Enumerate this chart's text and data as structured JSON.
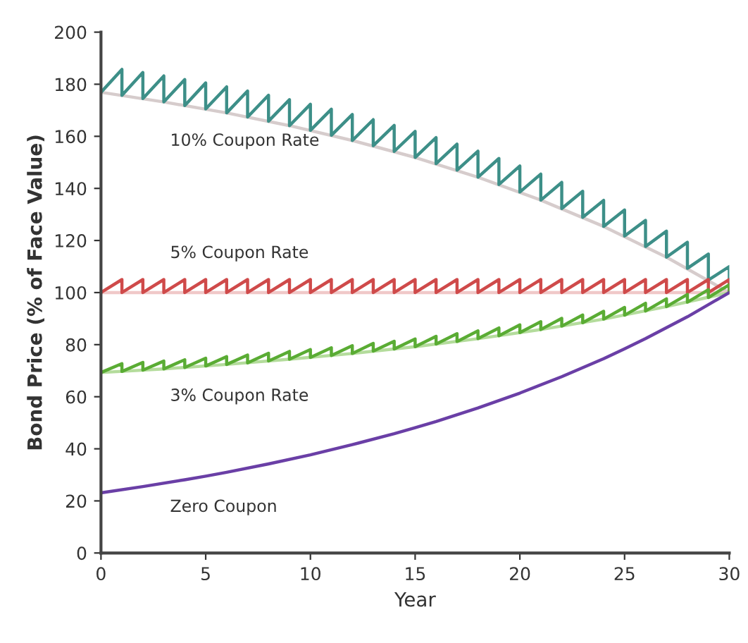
{
  "chart_data": {
    "type": "line",
    "xlabel": "Year",
    "ylabel": "Bond Price (% of Face Value)",
    "xlim": [
      0,
      30
    ],
    "ylim": [
      0,
      200
    ],
    "xticks": [
      0,
      5,
      10,
      15,
      20,
      25,
      30
    ],
    "yticks": [
      0,
      20,
      40,
      60,
      80,
      100,
      120,
      140,
      160,
      180,
      200
    ],
    "grid": false,
    "marker": "none",
    "line_style": "solid",
    "series": [
      {
        "color": "#d6cccc",
        "x": [
          0,
          3,
          6,
          9,
          12,
          15,
          18,
          21,
          24,
          27,
          30
        ],
        "values": [
          176.9,
          173.2,
          169.0,
          164.1,
          158.4,
          151.9,
          144.3,
          135.5,
          125.4,
          113.6,
          100.0
        ]
      },
      {
        "color": "#f0c8c8",
        "x": [
          0,
          30
        ],
        "values": [
          100,
          100
        ]
      },
      {
        "color": "#b4dc9c",
        "x": [
          0,
          3,
          6,
          9,
          12,
          15,
          18,
          21,
          24,
          27,
          30
        ],
        "values": [
          69.3,
          70.7,
          72.4,
          74.4,
          76.6,
          79.2,
          82.3,
          85.8,
          89.8,
          94.6,
          100.0
        ]
      },
      {
        "name": "10% Coupon Rate",
        "color": "#3d8f88",
        "x": [
          0,
          1,
          1,
          2,
          2,
          3,
          3,
          4,
          4,
          5,
          5,
          6,
          6,
          7,
          7,
          8,
          8,
          9,
          9,
          10,
          10,
          11,
          11,
          12,
          12,
          13,
          13,
          14,
          14,
          15,
          15,
          16,
          16,
          17,
          17,
          18,
          18,
          19,
          19,
          20,
          20,
          21,
          21,
          22,
          22,
          23,
          23,
          24,
          24,
          25,
          25,
          26,
          26,
          27,
          27,
          28,
          28,
          29,
          29,
          30,
          30
        ],
        "values": [
          176.9,
          185.7,
          175.7,
          184.5,
          174.5,
          183.2,
          173.2,
          181.8,
          171.8,
          180.5,
          170.5,
          179.0,
          169.0,
          177.4,
          167.4,
          175.8,
          165.8,
          174.1,
          164.1,
          172.3,
          162.3,
          170.4,
          160.4,
          168.4,
          158.4,
          166.4,
          156.4,
          164.2,
          154.2,
          161.9,
          151.9,
          159.5,
          149.5,
          157.0,
          147.0,
          154.3,
          144.3,
          151.5,
          141.5,
          148.6,
          138.6,
          145.5,
          135.5,
          142.3,
          132.3,
          138.9,
          128.9,
          135.4,
          125.4,
          131.7,
          121.7,
          127.7,
          117.7,
          123.6,
          113.6,
          119.3,
          109.3,
          114.8,
          104.8,
          110.0,
          100.0
        ]
      },
      {
        "name": "5% Coupon Rate",
        "color": "#cf4a4a",
        "x": [
          0,
          1,
          1,
          2,
          2,
          3,
          3,
          4,
          4,
          5,
          5,
          6,
          6,
          7,
          7,
          8,
          8,
          9,
          9,
          10,
          10,
          11,
          11,
          12,
          12,
          13,
          13,
          14,
          14,
          15,
          15,
          16,
          16,
          17,
          17,
          18,
          18,
          19,
          19,
          20,
          20,
          21,
          21,
          22,
          22,
          23,
          23,
          24,
          24,
          25,
          25,
          26,
          26,
          27,
          27,
          28,
          28,
          29,
          29,
          30,
          30
        ],
        "values": [
          100,
          105,
          100,
          105,
          100,
          105,
          100,
          105,
          100,
          105,
          100,
          105,
          100,
          105,
          100,
          105,
          100,
          105,
          100,
          105,
          100,
          105,
          100,
          105,
          100,
          105,
          100,
          105,
          100,
          105,
          100,
          105,
          100,
          105,
          100,
          105,
          100,
          105,
          100,
          105,
          100,
          105,
          100,
          105,
          100,
          105,
          100,
          105,
          100,
          105,
          100,
          105,
          100,
          105,
          100,
          105,
          100,
          105,
          100,
          105,
          100
        ]
      },
      {
        "name": "3% Coupon Rate",
        "color": "#5aac34",
        "x": [
          0,
          1,
          1,
          2,
          2,
          3,
          3,
          4,
          4,
          5,
          5,
          6,
          6,
          7,
          7,
          8,
          8,
          9,
          9,
          10,
          10,
          11,
          11,
          12,
          12,
          13,
          13,
          14,
          14,
          15,
          15,
          16,
          16,
          17,
          17,
          18,
          18,
          19,
          19,
          20,
          20,
          21,
          21,
          22,
          22,
          23,
          23,
          24,
          24,
          25,
          25,
          26,
          26,
          27,
          27,
          28,
          28,
          29,
          29,
          30,
          30
        ],
        "values": [
          69.3,
          72.7,
          69.7,
          73.2,
          70.2,
          73.7,
          70.7,
          74.2,
          71.2,
          74.8,
          71.8,
          75.4,
          72.4,
          76.0,
          73.0,
          76.7,
          73.7,
          77.4,
          74.4,
          78.1,
          75.1,
          78.8,
          75.8,
          79.6,
          76.6,
          80.5,
          77.5,
          81.3,
          78.3,
          82.2,
          79.2,
          83.2,
          80.2,
          84.2,
          81.2,
          85.3,
          82.3,
          86.4,
          83.4,
          87.6,
          84.6,
          88.8,
          85.8,
          90.1,
          87.1,
          91.4,
          88.4,
          92.8,
          89.8,
          94.3,
          91.3,
          95.9,
          92.9,
          97.6,
          94.6,
          99.3,
          96.3,
          101.1,
          98.1,
          103.0,
          100.0
        ]
      },
      {
        "name": "Zero Coupon",
        "color": "#6a3fa6",
        "x": [
          0,
          2,
          4,
          5,
          6,
          8,
          10,
          12,
          14,
          15,
          16,
          18,
          20,
          22,
          24,
          25,
          26,
          28,
          30
        ],
        "values": [
          23.1,
          25.5,
          28.1,
          29.5,
          31.0,
          34.2,
          37.7,
          41.6,
          45.8,
          48.1,
          50.5,
          55.7,
          61.4,
          67.7,
          74.6,
          78.4,
          82.3,
          90.7,
          100.0
        ]
      }
    ]
  }
}
